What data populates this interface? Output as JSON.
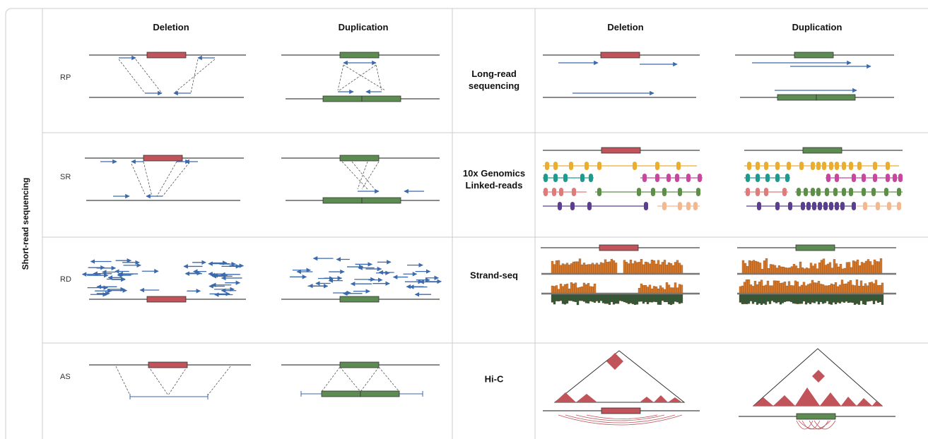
{
  "sidebar_label": "Short-read sequencing",
  "left_panel": {
    "columns": [
      "Deletion",
      "Duplication"
    ],
    "rows": [
      "RP",
      "SR",
      "RD",
      "AS"
    ]
  },
  "right_panel": {
    "columns": [
      "Deletion",
      "Duplication"
    ],
    "rows": [
      "Long-read sequencing",
      "10x Genomics Linked-reads",
      "Strand-seq",
      "Hi-C"
    ]
  }
}
